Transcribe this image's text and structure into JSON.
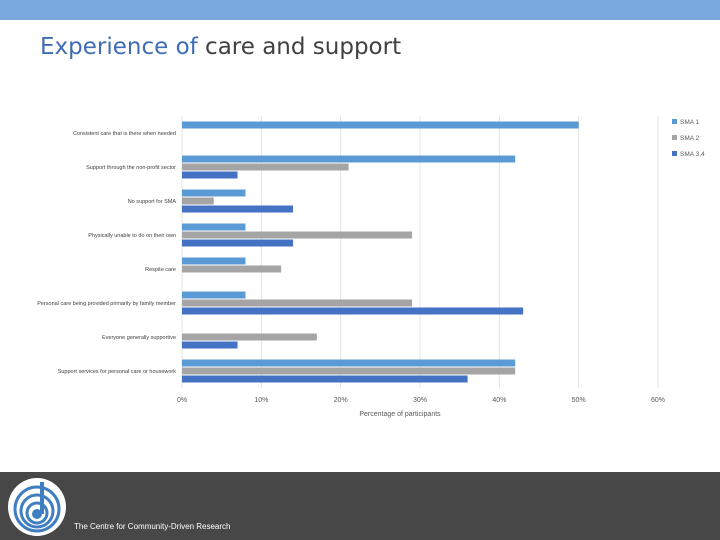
{
  "slide": {
    "title_highlight": "Experience of",
    "title_rest": " care and support",
    "footer_text": "The Centre for Community-Driven Research"
  },
  "colors": {
    "series1": "#5b9bd5",
    "series2": "#a5a5a5",
    "series3": "#4472c4",
    "accent_bar": "#7aa9dd",
    "footer": "#474747"
  },
  "chart_data": {
    "type": "bar",
    "orientation": "horizontal",
    "title": "",
    "xlabel": "Percentage of participants",
    "ylabel": "",
    "xlim": [
      0,
      60
    ],
    "xticks": [
      "0%",
      "10%",
      "20%",
      "30%",
      "40%",
      "50%",
      "60%"
    ],
    "categories": [
      "Consistent care that is there when needed",
      "Support through the non-profit sector",
      "No support for SMA",
      "Physically unable to do on their own",
      "Respite care",
      "Personal care being provided primarily by family member",
      "Everyone generally supportive",
      "Support services for personal care or housework"
    ],
    "series": [
      {
        "name": "SMA 1",
        "values": [
          50,
          42,
          8,
          8,
          8,
          8,
          null,
          42
        ]
      },
      {
        "name": "SMA 2",
        "values": [
          null,
          21,
          4,
          29,
          12.5,
          29,
          17,
          42
        ]
      },
      {
        "name": "SMA 3,4",
        "values": [
          null,
          7,
          14,
          14,
          null,
          43,
          7,
          36
        ]
      }
    ],
    "legend_position": "right"
  }
}
